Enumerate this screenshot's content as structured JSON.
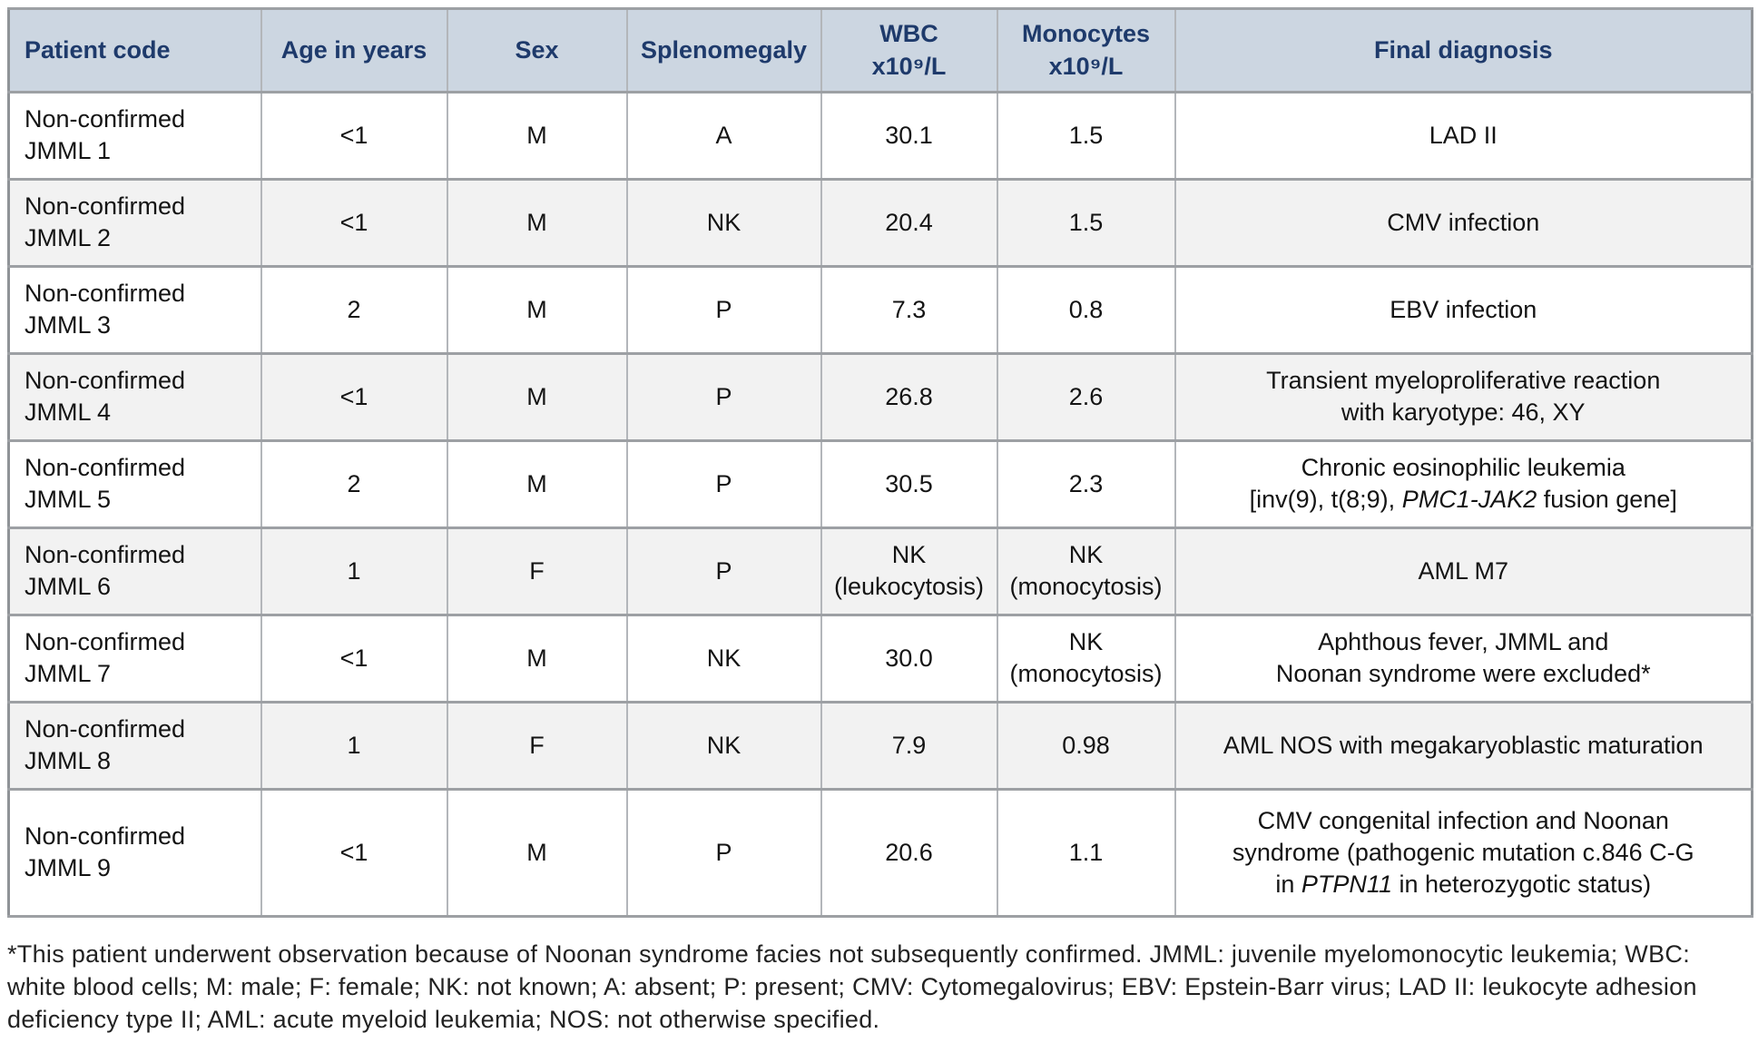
{
  "table": {
    "headers": [
      "Patient code",
      "Age in years",
      "Sex",
      "Splenomegaly",
      "WBC\nx10⁹/L",
      "Monocytes\nx10⁹/L",
      "Final diagnosis"
    ],
    "rows": [
      {
        "code": "Non-confirmed\nJMML 1",
        "age": "<1",
        "sex": "M",
        "splenomegaly": "A",
        "wbc": "30.1",
        "monocytes": "1.5",
        "diagnosis": [
          {
            "t": "LAD II"
          }
        ]
      },
      {
        "code": "Non-confirmed\nJMML 2",
        "age": "<1",
        "sex": "M",
        "splenomegaly": "NK",
        "wbc": "20.4",
        "monocytes": "1.5",
        "diagnosis": [
          {
            "t": "CMV infection"
          }
        ]
      },
      {
        "code": "Non-confirmed\nJMML 3",
        "age": "2",
        "sex": "M",
        "splenomegaly": "P",
        "wbc": "7.3",
        "monocytes": "0.8",
        "diagnosis": [
          {
            "t": "EBV infection"
          }
        ]
      },
      {
        "code": "Non-confirmed\nJMML 4",
        "age": "<1",
        "sex": "M",
        "splenomegaly": "P",
        "wbc": "26.8",
        "monocytes": "2.6",
        "diagnosis": [
          {
            "t": "Transient myeloproliferative reaction"
          },
          {
            "br": true
          },
          {
            "t": "with karyotype: 46, XY"
          }
        ]
      },
      {
        "code": "Non-confirmed\nJMML 5",
        "age": "2",
        "sex": "M",
        "splenomegaly": "P",
        "wbc": "30.5",
        "monocytes": "2.3",
        "diagnosis": [
          {
            "t": "Chronic eosinophilic leukemia"
          },
          {
            "br": true
          },
          {
            "t": "[inv(9), t(8;9), "
          },
          {
            "t": "PMC1-JAK2",
            "i": true
          },
          {
            "t": " fusion gene]"
          }
        ]
      },
      {
        "code": "Non-confirmed\nJMML 6",
        "age": "1",
        "sex": "F",
        "splenomegaly": "P",
        "wbc": "NK\n(leukocytosis)",
        "monocytes": "NK\n(monocytosis)",
        "diagnosis": [
          {
            "t": "AML M7"
          }
        ]
      },
      {
        "code": "Non-confirmed\nJMML 7",
        "age": "<1",
        "sex": "M",
        "splenomegaly": "NK",
        "wbc": "30.0",
        "monocytes": "NK\n(monocytosis)",
        "diagnosis": [
          {
            "t": "Aphthous fever, JMML and"
          },
          {
            "br": true
          },
          {
            "t": "Noonan syndrome were excluded*"
          }
        ]
      },
      {
        "code": "Non-confirmed\nJMML 8",
        "age": "1",
        "sex": "F",
        "splenomegaly": "NK",
        "wbc": "7.9",
        "monocytes": "0.98",
        "diagnosis": [
          {
            "t": "AML NOS with megakaryoblastic maturation"
          }
        ]
      },
      {
        "code": "Non-confirmed\nJMML 9",
        "age": "<1",
        "sex": "M",
        "splenomegaly": "P",
        "wbc": "20.6",
        "monocytes": "1.1",
        "diagnosis": [
          {
            "t": "CMV congenital infection and Noonan"
          },
          {
            "br": true
          },
          {
            "t": "syndrome (pathogenic mutation c.846 C-G"
          },
          {
            "br": true
          },
          {
            "t": "in "
          },
          {
            "t": "PTPN11",
            "i": true
          },
          {
            "t": " in heterozygotic status)"
          }
        ]
      }
    ]
  },
  "footnote": "*This patient underwent observation because of Noonan syndrome facies not subsequently confirmed. JMML: juvenile myelomonocytic leukemia; WBC: white blood cells; M: male; F: female; NK: not known; A: absent; P: present; CMV: Cytomegalovirus; EBV: Epstein-Barr virus; LAD II: leukocyte adhesion deficiency type II; AML: acute myeloid leukemia; NOS: not otherwise specified.",
  "colors": {
    "header_bg": "#ccd6e1",
    "header_text": "#1e3a6b",
    "alt_row_bg": "#f2f2f2",
    "border_gray": "#9da0a4",
    "body_text": "#141414"
  }
}
